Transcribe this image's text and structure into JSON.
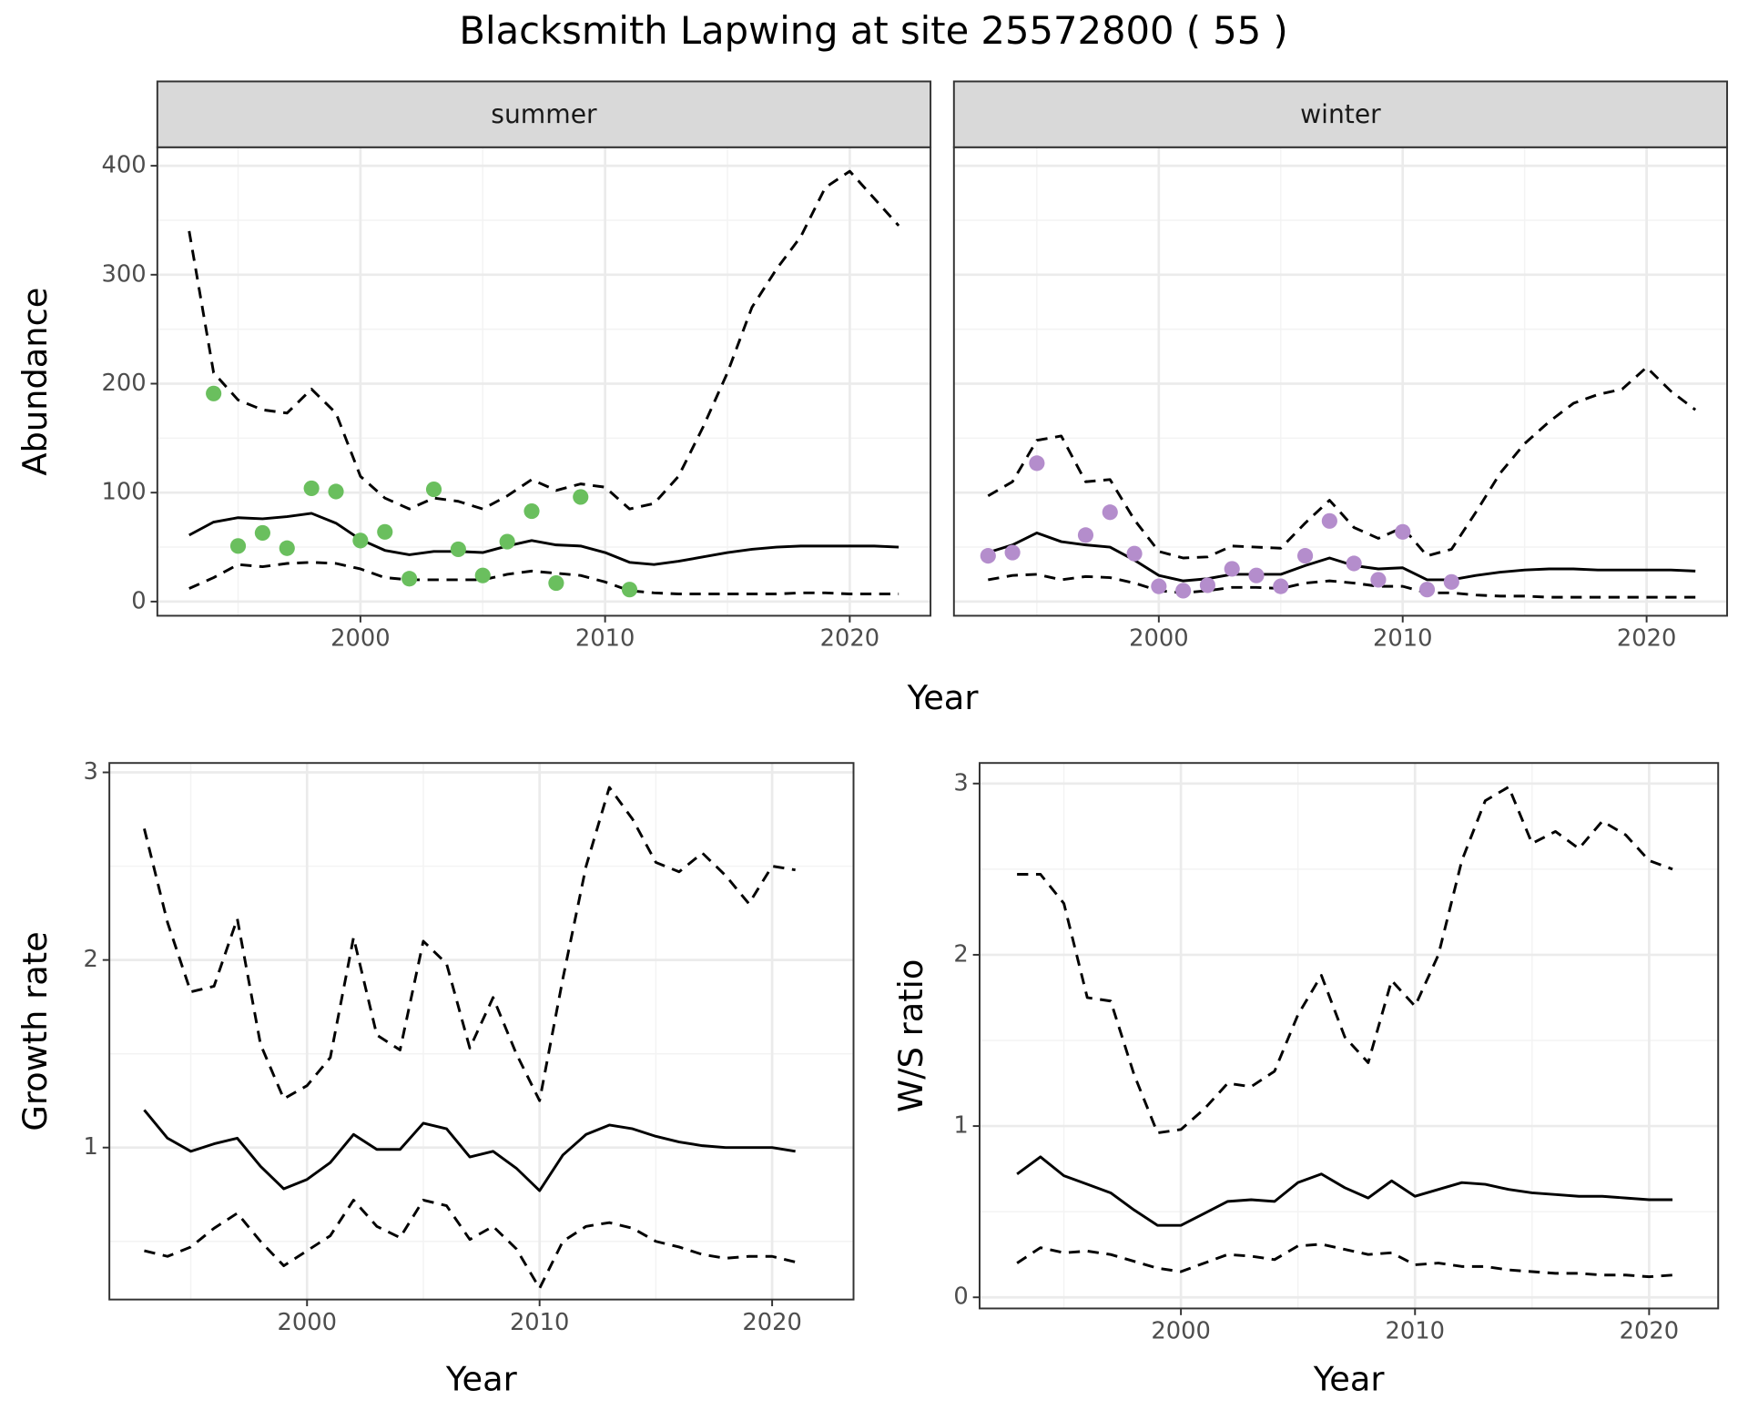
{
  "title": "Blacksmith Lapwing at site 25572800 ( 55 )",
  "chart_data": [
    {
      "type": "line",
      "facet": "summer",
      "ylabel": "Abundance",
      "xlabel": "Year",
      "grid": true,
      "xlim": [
        1991.7,
        2023.3
      ],
      "ylim": [
        -13,
        417
      ],
      "xticks": [
        2000,
        2010,
        2020
      ],
      "yticks": [
        0,
        100,
        200,
        300,
        400
      ],
      "xminor": [
        1995,
        2005,
        2015
      ],
      "yminor": [
        50,
        150,
        250,
        350
      ],
      "x": [
        1993,
        1994,
        1995,
        1996,
        1997,
        1998,
        1999,
        2000,
        2001,
        2002,
        2003,
        2004,
        2005,
        2006,
        2007,
        2008,
        2009,
        2010,
        2011,
        2012,
        2013,
        2014,
        2015,
        2016,
        2017,
        2018,
        2019,
        2020,
        2021,
        2022
      ],
      "series": [
        {
          "color": "#000000",
          "dash": "solid",
          "values": [
            61,
            73,
            77,
            76,
            78,
            81,
            72,
            57,
            47,
            43,
            46,
            46,
            45,
            51,
            56,
            52,
            51,
            45,
            36,
            34,
            37,
            41,
            45,
            48,
            50,
            51,
            51,
            51,
            51,
            50
          ]
        },
        {
          "color": "#000000",
          "dash": "dashed",
          "values": [
            340,
            210,
            185,
            176,
            173,
            195,
            173,
            115,
            95,
            85,
            95,
            92,
            85,
            97,
            112,
            102,
            108,
            105,
            85,
            90,
            115,
            160,
            210,
            270,
            305,
            335,
            380,
            395,
            370,
            345
          ]
        },
        {
          "color": "#000000",
          "dash": "dashed",
          "values": [
            12,
            22,
            34,
            32,
            35,
            36,
            35,
            30,
            22,
            20,
            20,
            20,
            20,
            25,
            28,
            26,
            24,
            18,
            10,
            8,
            7,
            7,
            7,
            7,
            7,
            8,
            8,
            7,
            7,
            7
          ]
        }
      ],
      "points": {
        "color": "#6abf5e",
        "x": [
          1994,
          1995,
          1996,
          1997,
          1998,
          1999,
          2000,
          2001,
          2002,
          2003,
          2004,
          2005,
          2006,
          2007,
          2008,
          2009,
          2011
        ],
        "values": [
          191,
          51,
          63,
          49,
          104,
          101,
          56,
          64,
          21,
          103,
          48,
          24,
          55,
          83,
          17,
          96,
          11
        ]
      }
    },
    {
      "type": "line",
      "facet": "winter",
      "sharey": true,
      "grid": true,
      "xlim": [
        1991.6,
        2023.3
      ],
      "ylim": [
        -13,
        417
      ],
      "xticks": [
        2000,
        2010,
        2020
      ],
      "xminor": [
        1995,
        2005,
        2015
      ],
      "yminor": [
        50,
        150,
        250,
        350
      ],
      "x": [
        1993,
        1994,
        1995,
        1996,
        1997,
        1998,
        1999,
        2000,
        2001,
        2002,
        2003,
        2004,
        2005,
        2006,
        2007,
        2008,
        2009,
        2010,
        2011,
        2012,
        2013,
        2014,
        2015,
        2016,
        2017,
        2018,
        2019,
        2020,
        2021,
        2022
      ],
      "series": [
        {
          "color": "#000000",
          "dash": "solid",
          "values": [
            45,
            52,
            63,
            55,
            52,
            50,
            38,
            24,
            19,
            21,
            25,
            25,
            25,
            33,
            40,
            33,
            30,
            31,
            20,
            20,
            24,
            27,
            29,
            30,
            30,
            29,
            29,
            29,
            29,
            28
          ]
        },
        {
          "color": "#000000",
          "dash": "dashed",
          "values": [
            97,
            110,
            148,
            152,
            110,
            112,
            75,
            46,
            40,
            41,
            51,
            50,
            49,
            72,
            93,
            68,
            58,
            68,
            42,
            48,
            82,
            118,
            145,
            165,
            182,
            190,
            195,
            215,
            193,
            176
          ]
        },
        {
          "color": "#000000",
          "dash": "dashed",
          "values": [
            20,
            24,
            25,
            20,
            23,
            22,
            17,
            10,
            8,
            10,
            13,
            13,
            12,
            17,
            19,
            17,
            14,
            14,
            8,
            8,
            6,
            5,
            5,
            4,
            4,
            4,
            4,
            4,
            4,
            4
          ]
        }
      ],
      "points": {
        "color": "#b48dcc",
        "x": [
          1993,
          1994,
          1995,
          1997,
          1998,
          1999,
          2000,
          2001,
          2002,
          2003,
          2004,
          2005,
          2006,
          2007,
          2008,
          2009,
          2010,
          2011,
          2012
        ],
        "values": [
          42,
          45,
          127,
          61,
          82,
          44,
          14,
          10,
          15,
          30,
          24,
          14,
          42,
          74,
          35,
          20,
          64,
          11,
          18
        ]
      }
    },
    {
      "type": "line",
      "ylabel": "Growth rate",
      "xlabel": "Year",
      "grid": true,
      "xlim": [
        1991.5,
        2023.5
      ],
      "ylim": [
        0.19,
        3.05
      ],
      "xticks": [
        2000,
        2010,
        2020
      ],
      "yticks": [
        1,
        2,
        3
      ],
      "xminor": [
        1995,
        2005,
        2015
      ],
      "yminor": [
        0.5,
        1.5,
        2.5
      ],
      "x": [
        1993,
        1994,
        1995,
        1996,
        1997,
        1998,
        1999,
        2000,
        2001,
        2002,
        2003,
        2004,
        2005,
        2006,
        2007,
        2008,
        2009,
        2010,
        2011,
        2012,
        2013,
        2014,
        2015,
        2016,
        2017,
        2018,
        2019,
        2020,
        2021
      ],
      "series": [
        {
          "color": "#000000",
          "dash": "solid",
          "values": [
            1.2,
            1.05,
            0.98,
            1.02,
            1.05,
            0.9,
            0.78,
            0.83,
            0.92,
            1.07,
            0.99,
            0.99,
            1.13,
            1.1,
            0.95,
            0.98,
            0.89,
            0.77,
            0.96,
            1.07,
            1.12,
            1.1,
            1.06,
            1.03,
            1.01,
            1.0,
            1.0,
            1.0,
            0.98
          ]
        },
        {
          "color": "#000000",
          "dash": "dashed",
          "values": [
            2.7,
            2.2,
            1.83,
            1.86,
            2.22,
            1.55,
            1.26,
            1.33,
            1.48,
            2.12,
            1.6,
            1.52,
            2.1,
            1.98,
            1.53,
            1.8,
            1.5,
            1.25,
            1.9,
            2.5,
            2.92,
            2.75,
            2.52,
            2.47,
            2.57,
            2.45,
            2.3,
            2.5,
            2.48
          ]
        },
        {
          "color": "#000000",
          "dash": "dashed",
          "values": [
            0.45,
            0.42,
            0.47,
            0.57,
            0.65,
            0.5,
            0.37,
            0.45,
            0.53,
            0.72,
            0.58,
            0.52,
            0.72,
            0.69,
            0.51,
            0.58,
            0.46,
            0.25,
            0.5,
            0.58,
            0.6,
            0.57,
            0.5,
            0.47,
            0.43,
            0.41,
            0.42,
            0.42,
            0.39
          ]
        }
      ]
    },
    {
      "type": "line",
      "ylabel": "W/S ratio",
      "xlabel": "Year",
      "grid": true,
      "xlim": [
        1991.4,
        2022.95
      ],
      "ylim": [
        -0.065,
        3.12
      ],
      "xticks": [
        2000,
        2010,
        2020
      ],
      "yticks": [
        0,
        1,
        2,
        3
      ],
      "xminor": [
        1995,
        2005,
        2015
      ],
      "yminor": [
        0.5,
        1.5,
        2.5
      ],
      "x": [
        1993,
        1994,
        1995,
        1996,
        1997,
        1998,
        1999,
        2000,
        2001,
        2002,
        2003,
        2004,
        2005,
        2006,
        2007,
        2008,
        2009,
        2010,
        2011,
        2012,
        2013,
        2014,
        2015,
        2016,
        2017,
        2018,
        2019,
        2020,
        2021
      ],
      "series": [
        {
          "color": "#000000",
          "dash": "solid",
          "values": [
            0.72,
            0.82,
            0.71,
            0.66,
            0.61,
            0.51,
            0.42,
            0.42,
            0.49,
            0.56,
            0.57,
            0.56,
            0.67,
            0.72,
            0.64,
            0.58,
            0.68,
            0.59,
            0.63,
            0.67,
            0.66,
            0.63,
            0.61,
            0.6,
            0.59,
            0.59,
            0.58,
            0.57,
            0.57
          ]
        },
        {
          "color": "#000000",
          "dash": "dashed",
          "values": [
            2.47,
            2.47,
            2.3,
            1.75,
            1.73,
            1.3,
            0.96,
            0.98,
            1.1,
            1.25,
            1.23,
            1.32,
            1.65,
            1.88,
            1.52,
            1.37,
            1.85,
            1.7,
            2.0,
            2.55,
            2.9,
            2.98,
            2.65,
            2.72,
            2.62,
            2.78,
            2.7,
            2.55,
            2.5
          ]
        },
        {
          "color": "#000000",
          "dash": "dashed",
          "values": [
            0.2,
            0.29,
            0.26,
            0.27,
            0.25,
            0.21,
            0.17,
            0.15,
            0.2,
            0.25,
            0.24,
            0.22,
            0.3,
            0.31,
            0.28,
            0.25,
            0.26,
            0.19,
            0.2,
            0.18,
            0.18,
            0.16,
            0.15,
            0.14,
            0.14,
            0.13,
            0.13,
            0.12,
            0.13
          ]
        }
      ]
    }
  ]
}
